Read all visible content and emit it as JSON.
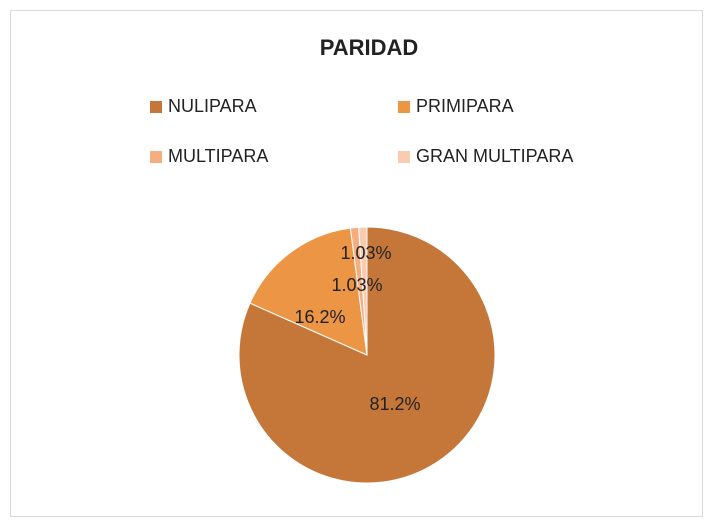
{
  "chart_data": {
    "type": "pie",
    "title": "PARIDAD",
    "categories": [
      "NULIPARA",
      "PRIMIPARA",
      "MULTIPARA",
      "GRAN MULTIPARA"
    ],
    "values": [
      81.2,
      16.2,
      1.03,
      1.03
    ],
    "value_labels": [
      "81.2%",
      "16.2%",
      "1.03%",
      "1.03%"
    ],
    "colors": [
      "#c5773a",
      "#ec9545",
      "#f6ad80",
      "#f9cbb0"
    ],
    "legend": "top"
  }
}
